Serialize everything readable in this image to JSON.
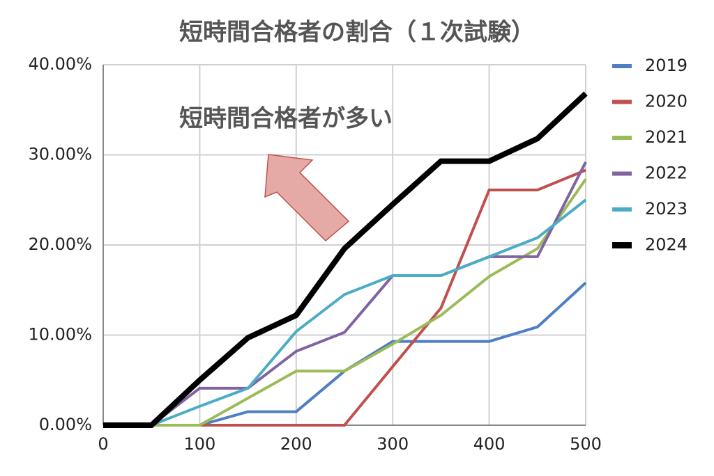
{
  "chart_data": {
    "type": "line",
    "title": "短時間合格者の割合（１次試験）",
    "annotation": "短時間合格者が多い",
    "x": [
      0,
      50,
      100,
      150,
      200,
      250,
      300,
      350,
      400,
      450,
      500
    ],
    "xlim": [
      0,
      500
    ],
    "xticks": [
      0,
      100,
      200,
      300,
      400,
      500
    ],
    "ylim": [
      0,
      40
    ],
    "yticks": [
      {
        "value": 0,
        "label": "0.00%"
      },
      {
        "value": 10,
        "label": "10.00%"
      },
      {
        "value": 20,
        "label": "20.00%"
      },
      {
        "value": 30,
        "label": "30.00%"
      },
      {
        "value": 40,
        "label": "40.00%"
      }
    ],
    "grid": true,
    "legend": "right",
    "series": [
      {
        "name": "2019",
        "color": "#4e7ec4",
        "values": [
          0,
          0,
          0,
          1.5,
          1.5,
          6.0,
          9.3,
          9.3,
          9.3,
          10.9,
          15.8
        ]
      },
      {
        "name": "2020",
        "color": "#c0504d",
        "values": [
          0,
          0,
          0,
          0,
          0,
          0,
          6.5,
          13.0,
          26.1,
          26.1,
          28.3
        ]
      },
      {
        "name": "2021",
        "color": "#9bbb59",
        "values": [
          0,
          0,
          0,
          3.0,
          6.0,
          6.0,
          9.0,
          12.2,
          16.5,
          19.6,
          27.3
        ]
      },
      {
        "name": "2022",
        "color": "#8064a2",
        "values": [
          0,
          0,
          4.1,
          4.1,
          8.2,
          10.3,
          16.6,
          16.6,
          18.7,
          18.7,
          29.2
        ]
      },
      {
        "name": "2023",
        "color": "#4bacc6",
        "values": [
          0,
          0,
          2.1,
          4.1,
          10.4,
          14.5,
          16.6,
          16.6,
          18.7,
          20.8,
          25.0
        ]
      },
      {
        "name": "2024",
        "color": "#000000",
        "values": [
          0,
          0,
          5.0,
          9.7,
          12.2,
          19.6,
          24.5,
          29.3,
          29.3,
          31.8,
          36.8
        ]
      }
    ]
  }
}
